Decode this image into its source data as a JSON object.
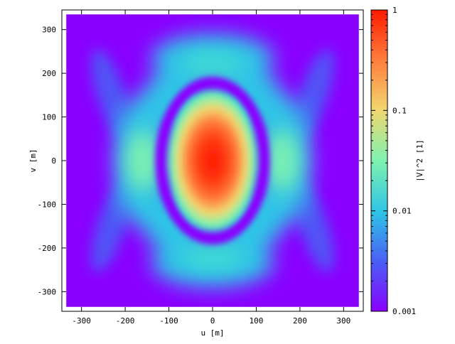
{
  "chart_data": {
    "type": "heatmap",
    "title": "",
    "xlabel": "u [m]",
    "ylabel": "v [m]",
    "colorbar_label": "|V|^2 [1]",
    "xlim": [
      -345,
      345
    ],
    "ylim": [
      -345,
      345
    ],
    "data_extent": {
      "x": [
        -335,
        335
      ],
      "y": [
        -335,
        335
      ]
    },
    "x_ticks": [
      -300,
      -200,
      -100,
      0,
      100,
      200,
      300
    ],
    "y_ticks": [
      -300,
      -200,
      -100,
      0,
      100,
      200,
      300
    ],
    "x_tick_labels": [
      "-300",
      "-200",
      "-100",
      "0",
      "100",
      "200",
      "300"
    ],
    "y_tick_labels": [
      "-300",
      "-200",
      "-100",
      "0",
      "100",
      "200",
      "300"
    ],
    "colorbar_scale": "log",
    "colorbar_range": [
      0.001,
      1
    ],
    "colorbar_ticks": [
      0.001,
      0.01,
      0.1,
      1
    ],
    "colorbar_tick_labels": [
      "0.001",
      "0.01",
      "0.1",
      "1"
    ],
    "colormap": [
      "#8a00ff",
      "#4a5cf5",
      "#2ec4e6",
      "#7ff2b0",
      "#f2d66e",
      "#ff7a3a",
      "#ff1a00"
    ],
    "background_color": "#8a00ff",
    "grid": false,
    "features": [
      {
        "name": "central lobe",
        "shape": "ellipse",
        "center": [
          0,
          0
        ],
        "half_widths": [
          100,
          160
        ],
        "peak_value": 1
      },
      {
        "name": "first null ring",
        "shape": "ellipse",
        "center": [
          0,
          0
        ],
        "half_widths": [
          110,
          175
        ],
        "value": 0.001
      },
      {
        "name": "left side lobe",
        "center": [
          -170,
          0
        ],
        "value": 0.03
      },
      {
        "name": "right side lobe",
        "center": [
          170,
          0
        ],
        "value": 0.03
      },
      {
        "name": "upper arc",
        "center": [
          0,
          235
        ],
        "value": 0.012
      },
      {
        "name": "lower arc",
        "center": [
          0,
          -235
        ],
        "value": 0.012
      },
      {
        "name": "upper-left outer arc",
        "center": [
          -230,
          150
        ],
        "value": 0.006
      },
      {
        "name": "upper-right outer arc",
        "center": [
          230,
          150
        ],
        "value": 0.006
      },
      {
        "name": "lower-left outer arc",
        "center": [
          -230,
          -150
        ],
        "value": 0.006
      },
      {
        "name": "lower-right outer arc",
        "center": [
          230,
          -150
        ],
        "value": 0.006
      }
    ]
  }
}
